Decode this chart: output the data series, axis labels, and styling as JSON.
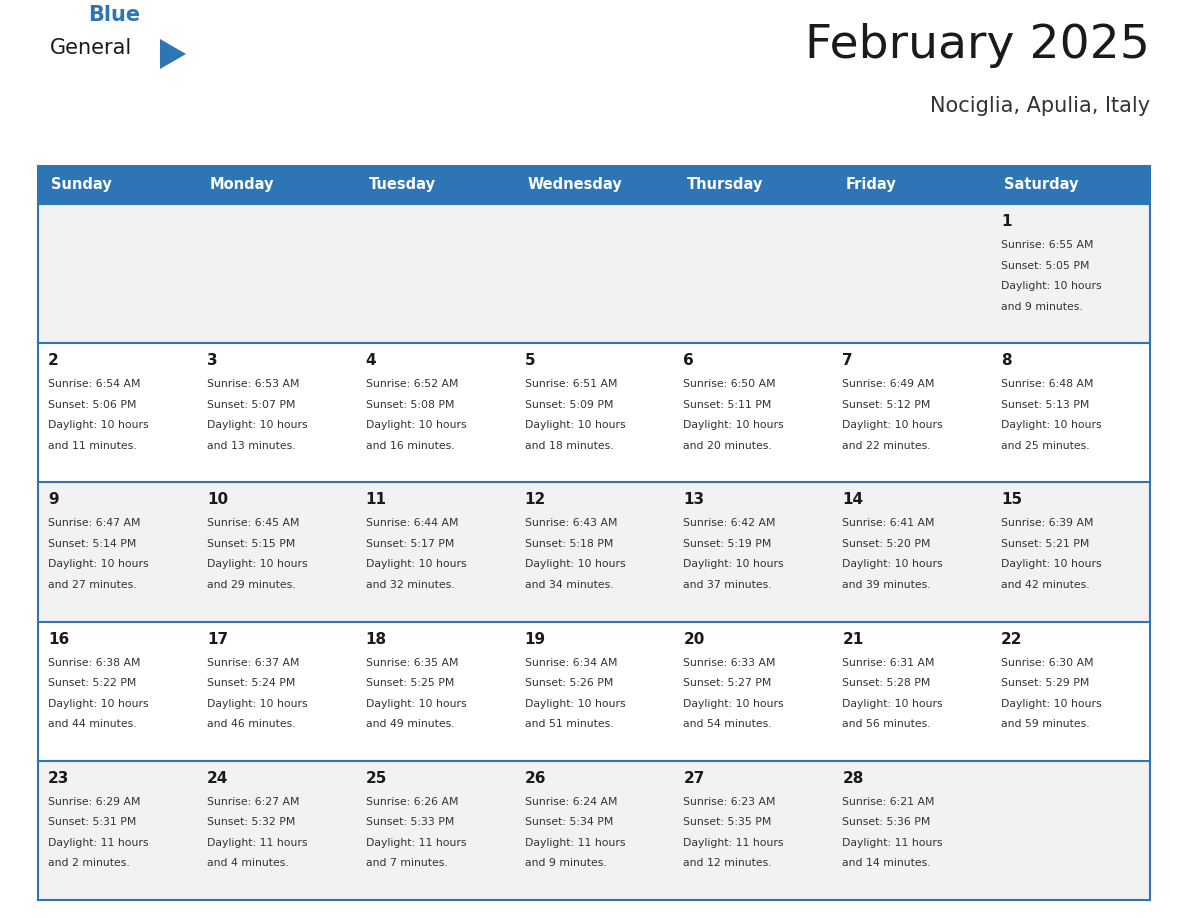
{
  "title": "February 2025",
  "subtitle": "Nociglia, Apulia, Italy",
  "header_bg": "#2E75B6",
  "header_text_color": "#FFFFFF",
  "cell_bg_odd": "#F2F2F2",
  "cell_bg_even": "#FFFFFF",
  "border_color": "#2E75B6",
  "border_light": "#CCCCCC",
  "day_names": [
    "Sunday",
    "Monday",
    "Tuesday",
    "Wednesday",
    "Thursday",
    "Friday",
    "Saturday"
  ],
  "title_color": "#1a1a1a",
  "subtitle_color": "#333333",
  "date_color": "#1a1a1a",
  "info_color": "#333333",
  "logo_general_color": "#1a1a1a",
  "logo_blue_color": "#2E75B6",
  "weeks": [
    [
      {
        "day": null,
        "info": ""
      },
      {
        "day": null,
        "info": ""
      },
      {
        "day": null,
        "info": ""
      },
      {
        "day": null,
        "info": ""
      },
      {
        "day": null,
        "info": ""
      },
      {
        "day": null,
        "info": ""
      },
      {
        "day": 1,
        "info": "Sunrise: 6:55 AM\nSunset: 5:05 PM\nDaylight: 10 hours\nand 9 minutes."
      }
    ],
    [
      {
        "day": 2,
        "info": "Sunrise: 6:54 AM\nSunset: 5:06 PM\nDaylight: 10 hours\nand 11 minutes."
      },
      {
        "day": 3,
        "info": "Sunrise: 6:53 AM\nSunset: 5:07 PM\nDaylight: 10 hours\nand 13 minutes."
      },
      {
        "day": 4,
        "info": "Sunrise: 6:52 AM\nSunset: 5:08 PM\nDaylight: 10 hours\nand 16 minutes."
      },
      {
        "day": 5,
        "info": "Sunrise: 6:51 AM\nSunset: 5:09 PM\nDaylight: 10 hours\nand 18 minutes."
      },
      {
        "day": 6,
        "info": "Sunrise: 6:50 AM\nSunset: 5:11 PM\nDaylight: 10 hours\nand 20 minutes."
      },
      {
        "day": 7,
        "info": "Sunrise: 6:49 AM\nSunset: 5:12 PM\nDaylight: 10 hours\nand 22 minutes."
      },
      {
        "day": 8,
        "info": "Sunrise: 6:48 AM\nSunset: 5:13 PM\nDaylight: 10 hours\nand 25 minutes."
      }
    ],
    [
      {
        "day": 9,
        "info": "Sunrise: 6:47 AM\nSunset: 5:14 PM\nDaylight: 10 hours\nand 27 minutes."
      },
      {
        "day": 10,
        "info": "Sunrise: 6:45 AM\nSunset: 5:15 PM\nDaylight: 10 hours\nand 29 minutes."
      },
      {
        "day": 11,
        "info": "Sunrise: 6:44 AM\nSunset: 5:17 PM\nDaylight: 10 hours\nand 32 minutes."
      },
      {
        "day": 12,
        "info": "Sunrise: 6:43 AM\nSunset: 5:18 PM\nDaylight: 10 hours\nand 34 minutes."
      },
      {
        "day": 13,
        "info": "Sunrise: 6:42 AM\nSunset: 5:19 PM\nDaylight: 10 hours\nand 37 minutes."
      },
      {
        "day": 14,
        "info": "Sunrise: 6:41 AM\nSunset: 5:20 PM\nDaylight: 10 hours\nand 39 minutes."
      },
      {
        "day": 15,
        "info": "Sunrise: 6:39 AM\nSunset: 5:21 PM\nDaylight: 10 hours\nand 42 minutes."
      }
    ],
    [
      {
        "day": 16,
        "info": "Sunrise: 6:38 AM\nSunset: 5:22 PM\nDaylight: 10 hours\nand 44 minutes."
      },
      {
        "day": 17,
        "info": "Sunrise: 6:37 AM\nSunset: 5:24 PM\nDaylight: 10 hours\nand 46 minutes."
      },
      {
        "day": 18,
        "info": "Sunrise: 6:35 AM\nSunset: 5:25 PM\nDaylight: 10 hours\nand 49 minutes."
      },
      {
        "day": 19,
        "info": "Sunrise: 6:34 AM\nSunset: 5:26 PM\nDaylight: 10 hours\nand 51 minutes."
      },
      {
        "day": 20,
        "info": "Sunrise: 6:33 AM\nSunset: 5:27 PM\nDaylight: 10 hours\nand 54 minutes."
      },
      {
        "day": 21,
        "info": "Sunrise: 6:31 AM\nSunset: 5:28 PM\nDaylight: 10 hours\nand 56 minutes."
      },
      {
        "day": 22,
        "info": "Sunrise: 6:30 AM\nSunset: 5:29 PM\nDaylight: 10 hours\nand 59 minutes."
      }
    ],
    [
      {
        "day": 23,
        "info": "Sunrise: 6:29 AM\nSunset: 5:31 PM\nDaylight: 11 hours\nand 2 minutes."
      },
      {
        "day": 24,
        "info": "Sunrise: 6:27 AM\nSunset: 5:32 PM\nDaylight: 11 hours\nand 4 minutes."
      },
      {
        "day": 25,
        "info": "Sunrise: 6:26 AM\nSunset: 5:33 PM\nDaylight: 11 hours\nand 7 minutes."
      },
      {
        "day": 26,
        "info": "Sunrise: 6:24 AM\nSunset: 5:34 PM\nDaylight: 11 hours\nand 9 minutes."
      },
      {
        "day": 27,
        "info": "Sunrise: 6:23 AM\nSunset: 5:35 PM\nDaylight: 11 hours\nand 12 minutes."
      },
      {
        "day": 28,
        "info": "Sunrise: 6:21 AM\nSunset: 5:36 PM\nDaylight: 11 hours\nand 14 minutes."
      },
      {
        "day": null,
        "info": ""
      }
    ]
  ]
}
